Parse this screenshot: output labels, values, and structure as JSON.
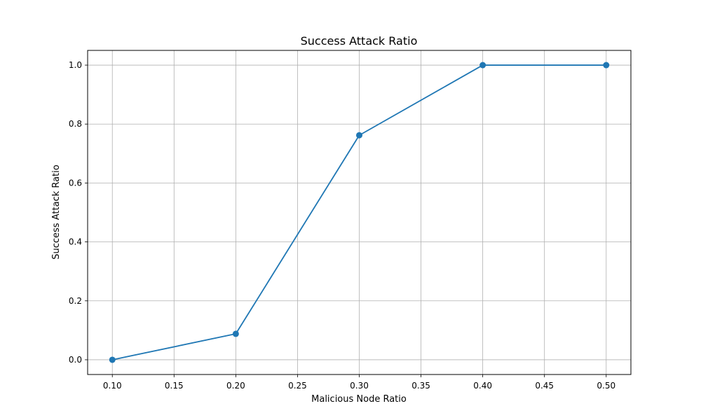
{
  "chart_data": {
    "type": "line",
    "title": "Success Attack Ratio",
    "xlabel": "Malicious Node Ratio",
    "ylabel": "Success Attack Ratio",
    "xlim": [
      0.08,
      0.52
    ],
    "ylim": [
      -0.05,
      1.05
    ],
    "xticks": [
      0.1,
      0.15,
      0.2,
      0.25,
      0.3,
      0.35,
      0.4,
      0.45,
      0.5
    ],
    "xtick_labels": [
      "0.10",
      "0.15",
      "0.20",
      "0.25",
      "0.30",
      "0.35",
      "0.40",
      "0.45",
      "0.50"
    ],
    "yticks": [
      0.0,
      0.2,
      0.4,
      0.6,
      0.8,
      1.0
    ],
    "ytick_labels": [
      "0.0",
      "0.2",
      "0.4",
      "0.6",
      "0.8",
      "1.0"
    ],
    "grid": true,
    "series": [
      {
        "x": [
          0.1,
          0.2,
          0.3,
          0.4,
          0.5
        ],
        "y": [
          0.0,
          0.088,
          0.762,
          1.0,
          1.0
        ],
        "color": "#1f77b4",
        "marker": "circle"
      }
    ]
  }
}
